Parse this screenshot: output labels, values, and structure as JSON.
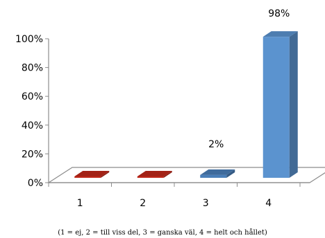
{
  "chart_data": {
    "type": "bar",
    "categories": [
      "1",
      "2",
      "3",
      "4"
    ],
    "values": [
      0,
      0,
      2,
      98
    ],
    "data_labels": [
      "",
      "",
      "2%",
      "98%"
    ],
    "ylim": [
      0,
      100
    ],
    "yticks": [
      "0%",
      "20%",
      "40%",
      "60%",
      "80%",
      "100%"
    ],
    "title": "",
    "xlabel": "",
    "ylabel": "",
    "grid": false,
    "three_d": true,
    "bar_colors": [
      "#C0281A",
      "#C0281A",
      "#4A7EB8",
      "#5B93CF"
    ],
    "caption": "(1 = ej, 2 = till viss del, 3 = ganska väl, 4 = helt och hållet)"
  }
}
